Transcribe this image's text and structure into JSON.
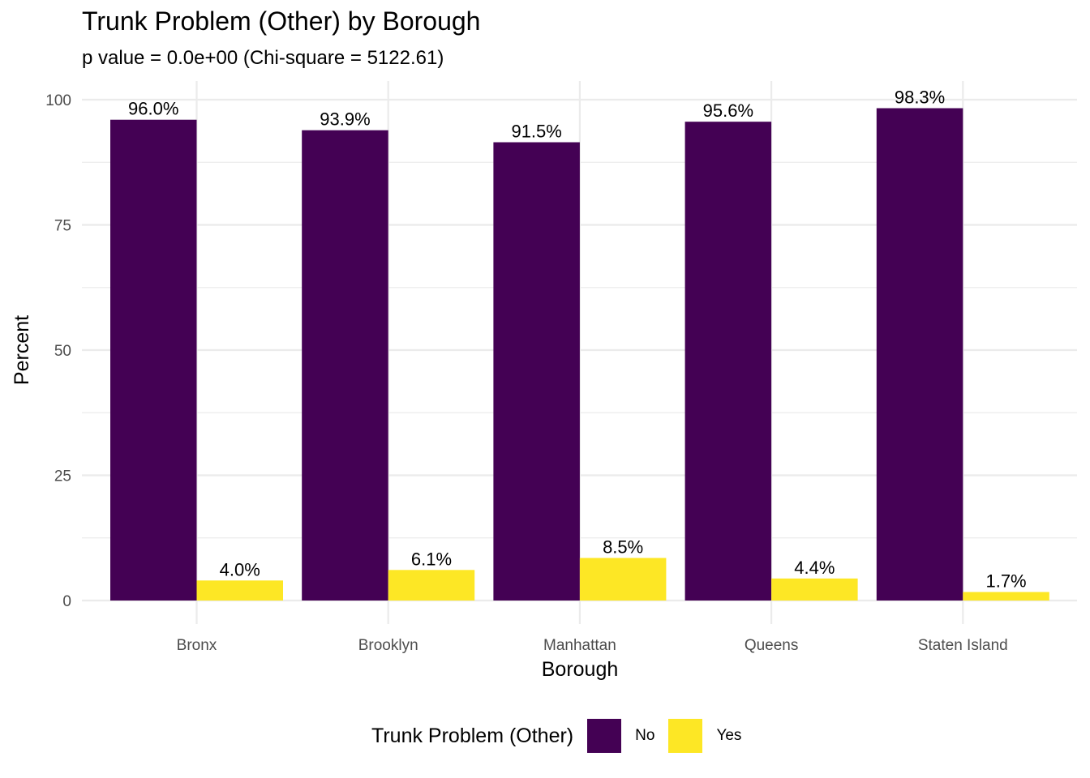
{
  "chart_data": {
    "type": "bar",
    "title": "Trunk Problem (Other) by Borough",
    "subtitle": "p value = 0.0e+00 (Chi-square = 5122.61)",
    "xlabel": "Borough",
    "ylabel": "Percent",
    "categories": [
      "Bronx",
      "Brooklyn",
      "Manhattan",
      "Queens",
      "Staten Island"
    ],
    "series": [
      {
        "name": "No",
        "color": "#440154",
        "values": [
          96.0,
          93.9,
          91.5,
          95.6,
          98.3
        ],
        "labels": [
          "96.0%",
          "93.9%",
          "91.5%",
          "95.6%",
          "98.3%"
        ]
      },
      {
        "name": "Yes",
        "color": "#FDE725",
        "values": [
          4.0,
          6.1,
          8.5,
          4.4,
          1.7
        ],
        "labels": [
          "4.0%",
          "6.1%",
          "8.5%",
          "4.4%",
          "1.7%"
        ]
      }
    ],
    "ylim": [
      0,
      100
    ],
    "yticks": [
      "0",
      "25",
      "50",
      "75",
      "100"
    ],
    "legend_title": "Trunk Problem (Other)",
    "legend_position": "bottom",
    "grid": true
  }
}
